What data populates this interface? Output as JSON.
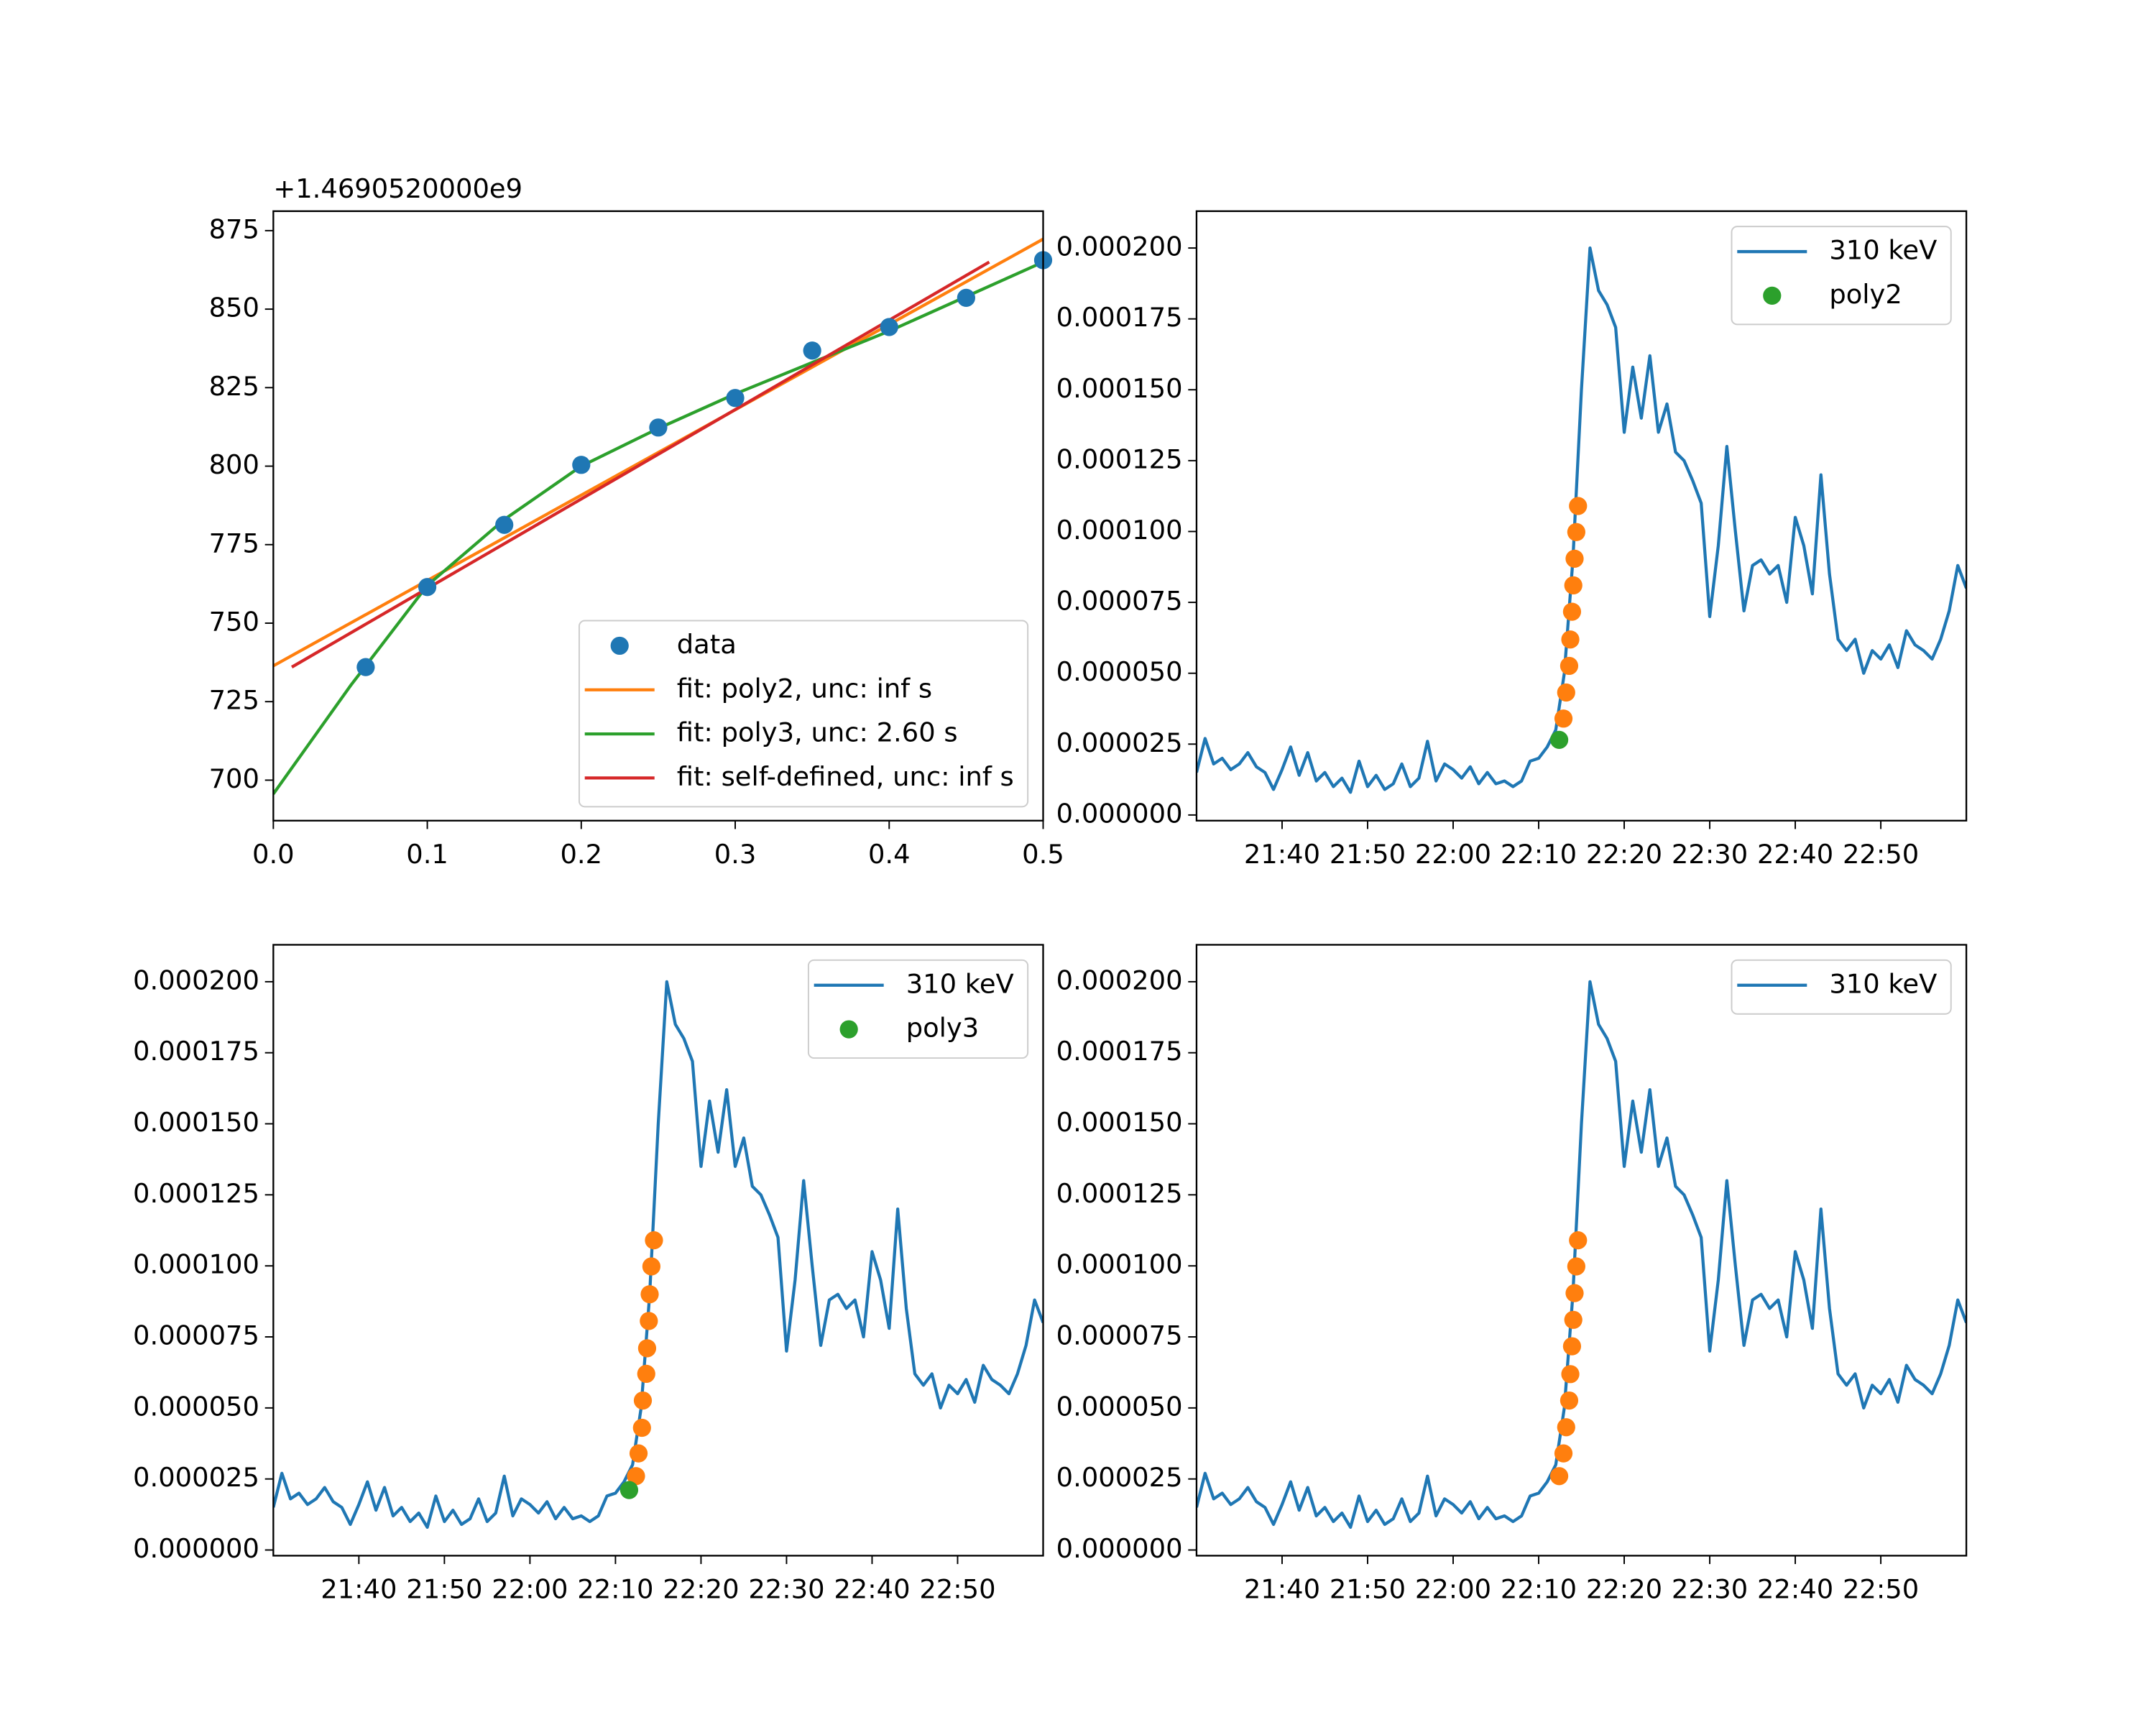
{
  "chart_data": [
    {
      "type": "line",
      "offset_label": "+1.4690520000e9",
      "legend": "lower right",
      "xlim": [
        0,
        0.5
      ],
      "xticks": [
        {
          "value": 0,
          "label": "0.0"
        },
        0.1,
        0.2,
        0.3,
        0.4,
        0.5
      ],
      "ylim": [
        687.1,
        881.2
      ],
      "yticks": [
        700,
        725,
        750,
        775,
        800,
        825,
        850,
        875
      ],
      "series": [
        {
          "name": "data",
          "type": "scatter",
          "color": "#1f77b4",
          "x": [
            0.06,
            0.1,
            0.15,
            0.2,
            0.25,
            0.3,
            0.35,
            0.4,
            0.45,
            0.5
          ],
          "values": [
            736,
            761.5,
            781.3,
            800.4,
            812.3,
            821.7,
            836.8,
            844.3,
            853.6,
            865.6
          ]
        },
        {
          "name": "fit: poly2, unc: inf s",
          "type": "line",
          "color": "#ff7f0e",
          "x": [
            0,
            0.5
          ],
          "values": [
            736.4,
            872.3
          ]
        },
        {
          "name": "fit: poly3, unc: 2.60 s",
          "type": "line",
          "color": "#2ca02c",
          "x": [
            0,
            0.05,
            0.1,
            0.15,
            0.2,
            0.25,
            0.3,
            0.35,
            0.4,
            0.45,
            0.5
          ],
          "values": [
            695.6,
            730,
            762,
            783,
            800,
            812,
            823,
            833,
            843,
            854,
            865
          ]
        },
        {
          "name": "fit: self-defined, unc: inf s",
          "type": "line",
          "color": "#d62728",
          "x": [
            0.012,
            0.465
          ],
          "values": [
            736,
            865
          ]
        }
      ]
    },
    {
      "type": "line",
      "legend": "upper right",
      "xlim": [
        "21:30",
        "23:00"
      ],
      "xticks": [
        "21:40",
        "21:50",
        "22:00",
        "22:10",
        "22:20",
        "22:30",
        "22:40",
        "22:50"
      ],
      "ylim": [
        -2e-06,
        0.000213
      ],
      "yticks": [
        {
          "value": 0,
          "label": "0.000000"
        },
        {
          "value": 2.5e-05,
          "label": "0.000025"
        },
        {
          "value": 5e-05,
          "label": "0.000050"
        },
        {
          "value": 7.5e-05,
          "label": "0.000075"
        },
        {
          "value": 0.0001,
          "label": "0.000100"
        },
        {
          "value": 0.000125,
          "label": "0.000125"
        },
        {
          "value": 0.00015,
          "label": "0.000150"
        },
        {
          "value": 0.000175,
          "label": "0.000175"
        },
        {
          "value": 0.0002,
          "label": "0.000200"
        }
      ],
      "series": [
        {
          "name": "310 keV",
          "type": "line",
          "color": "#1f77b4",
          "x": [
            "21:30",
            "21:31",
            "21:32",
            "21:33",
            "21:34",
            "21:35",
            "21:36",
            "21:37",
            "21:38",
            "21:39",
            "21:40",
            "21:41",
            "21:42",
            "21:43",
            "21:44",
            "21:45",
            "21:46",
            "21:47",
            "21:48",
            "21:49",
            "21:50",
            "21:51",
            "21:52",
            "21:53",
            "21:54",
            "21:55",
            "21:56",
            "21:57",
            "21:58",
            "21:59",
            "22:00",
            "22:01",
            "22:02",
            "22:03",
            "22:04",
            "22:05",
            "22:06",
            "22:07",
            "22:08",
            "22:09",
            "22:10",
            "22:11",
            "22:12",
            "22:13",
            "22:14",
            "22:15",
            "22:16",
            "22:17",
            "22:18",
            "22:19",
            "22:20",
            "22:21",
            "22:22",
            "22:23",
            "22:24",
            "22:25",
            "22:26",
            "22:27",
            "22:28",
            "22:29",
            "22:30",
            "22:31",
            "22:32",
            "22:33",
            "22:34",
            "22:35",
            "22:36",
            "22:37",
            "22:38",
            "22:39",
            "22:40",
            "22:41",
            "22:42",
            "22:43",
            "22:44",
            "22:45",
            "22:46",
            "22:47",
            "22:48",
            "22:49",
            "22:50",
            "22:51",
            "22:52",
            "22:53",
            "22:54",
            "22:55",
            "22:56",
            "22:57",
            "22:58",
            "22:59",
            "23:00"
          ],
          "values": [
            1.5e-05,
            2.7e-05,
            1.8e-05,
            2e-05,
            1.6e-05,
            1.8e-05,
            2.2e-05,
            1.7e-05,
            1.5e-05,
            9e-06,
            1.6e-05,
            2.4e-05,
            1.4e-05,
            2.2e-05,
            1.2e-05,
            1.5e-05,
            1e-05,
            1.3e-05,
            8e-06,
            1.9e-05,
            1e-05,
            1.4e-05,
            9e-06,
            1.1e-05,
            1.8e-05,
            1e-05,
            1.3e-05,
            2.6e-05,
            1.2e-05,
            1.8e-05,
            1.6e-05,
            1.3e-05,
            1.7e-05,
            1.1e-05,
            1.5e-05,
            1.1e-05,
            1.2e-05,
            1e-05,
            1.2e-05,
            1.9e-05,
            2e-05,
            2.4e-05,
            3e-05,
            5e-05,
            9e-05,
            0.00015,
            0.0002,
            0.000185,
            0.00018,
            0.000172,
            0.000135,
            0.000158,
            0.00014,
            0.000162,
            0.000135,
            0.000145,
            0.000128,
            0.000125,
            0.000118,
            0.00011,
            7e-05,
            9.5e-05,
            0.00013,
            0.0001,
            7.2e-05,
            8.8e-05,
            9e-05,
            8.5e-05,
            8.8e-05,
            7.5e-05,
            0.000105,
            9.5e-05,
            7.8e-05,
            0.00012,
            8.5e-05,
            6.2e-05,
            5.8e-05,
            6.2e-05,
            5e-05,
            5.8e-05,
            5.5e-05,
            6e-05,
            5.2e-05,
            6.5e-05,
            6e-05,
            5.8e-05,
            5.5e-05,
            6.2e-05,
            7.2e-05,
            8.8e-05,
            8e-05
          ]
        },
        {
          "type": "scatter",
          "color": "#ff7f0e",
          "x": [
            "22:12:54",
            "22:13:13",
            "22:13:34",
            "22:13:42",
            "22:13:54",
            "22:14:03",
            "22:14:12",
            "22:14:24",
            "22:14:36"
          ],
          "values": [
            3.4e-05,
            4.32e-05,
            5.26e-05,
            6.19e-05,
            7.17e-05,
            8.1e-05,
            9.04e-05,
            9.98e-05,
            0.000109
          ]
        },
        {
          "name": "poly2",
          "type": "scatter",
          "color": "#2ca02c",
          "x": [
            "22:12:24"
          ],
          "values": [
            2.65e-05
          ]
        }
      ]
    },
    {
      "type": "line",
      "legend": "upper right",
      "xlim": [
        "21:30",
        "23:00"
      ],
      "xticks": [
        "21:40",
        "21:50",
        "22:00",
        "22:10",
        "22:20",
        "22:30",
        "22:40",
        "22:50"
      ],
      "ylim": [
        -2e-06,
        0.000213
      ],
      "yticks": [
        {
          "value": 0,
          "label": "0.000000"
        },
        {
          "value": 2.5e-05,
          "label": "0.000025"
        },
        {
          "value": 5e-05,
          "label": "0.000050"
        },
        {
          "value": 7.5e-05,
          "label": "0.000075"
        },
        {
          "value": 0.0001,
          "label": "0.000100"
        },
        {
          "value": 0.000125,
          "label": "0.000125"
        },
        {
          "value": 0.00015,
          "label": "0.000150"
        },
        {
          "value": 0.000175,
          "label": "0.000175"
        },
        {
          "value": 0.0002,
          "label": "0.000200"
        }
      ],
      "series": [
        {
          "name": "310 keV",
          "type": "line",
          "color": "#1f77b4",
          "x": [
            "21:30",
            "21:31",
            "21:32",
            "21:33",
            "21:34",
            "21:35",
            "21:36",
            "21:37",
            "21:38",
            "21:39",
            "21:40",
            "21:41",
            "21:42",
            "21:43",
            "21:44",
            "21:45",
            "21:46",
            "21:47",
            "21:48",
            "21:49",
            "21:50",
            "21:51",
            "21:52",
            "21:53",
            "21:54",
            "21:55",
            "21:56",
            "21:57",
            "21:58",
            "21:59",
            "22:00",
            "22:01",
            "22:02",
            "22:03",
            "22:04",
            "22:05",
            "22:06",
            "22:07",
            "22:08",
            "22:09",
            "22:10",
            "22:11",
            "22:12",
            "22:13",
            "22:14",
            "22:15",
            "22:16",
            "22:17",
            "22:18",
            "22:19",
            "22:20",
            "22:21",
            "22:22",
            "22:23",
            "22:24",
            "22:25",
            "22:26",
            "22:27",
            "22:28",
            "22:29",
            "22:30",
            "22:31",
            "22:32",
            "22:33",
            "22:34",
            "22:35",
            "22:36",
            "22:37",
            "22:38",
            "22:39",
            "22:40",
            "22:41",
            "22:42",
            "22:43",
            "22:44",
            "22:45",
            "22:46",
            "22:47",
            "22:48",
            "22:49",
            "22:50",
            "22:51",
            "22:52",
            "22:53",
            "22:54",
            "22:55",
            "22:56",
            "22:57",
            "22:58",
            "22:59",
            "23:00"
          ],
          "values": [
            1.5e-05,
            2.7e-05,
            1.8e-05,
            2e-05,
            1.6e-05,
            1.8e-05,
            2.2e-05,
            1.7e-05,
            1.5e-05,
            9e-06,
            1.6e-05,
            2.4e-05,
            1.4e-05,
            2.2e-05,
            1.2e-05,
            1.5e-05,
            1e-05,
            1.3e-05,
            8e-06,
            1.9e-05,
            1e-05,
            1.4e-05,
            9e-06,
            1.1e-05,
            1.8e-05,
            1e-05,
            1.3e-05,
            2.6e-05,
            1.2e-05,
            1.8e-05,
            1.6e-05,
            1.3e-05,
            1.7e-05,
            1.1e-05,
            1.5e-05,
            1.1e-05,
            1.2e-05,
            1e-05,
            1.2e-05,
            1.9e-05,
            2e-05,
            2.4e-05,
            3e-05,
            5e-05,
            9e-05,
            0.00015,
            0.0002,
            0.000185,
            0.00018,
            0.000172,
            0.000135,
            0.000158,
            0.00014,
            0.000162,
            0.000135,
            0.000145,
            0.000128,
            0.000125,
            0.000118,
            0.00011,
            7e-05,
            9.5e-05,
            0.00013,
            0.0001,
            7.2e-05,
            8.8e-05,
            9e-05,
            8.5e-05,
            8.8e-05,
            7.5e-05,
            0.000105,
            9.5e-05,
            7.8e-05,
            0.00012,
            8.5e-05,
            6.2e-05,
            5.8e-05,
            6.2e-05,
            5e-05,
            5.8e-05,
            5.5e-05,
            6e-05,
            5.2e-05,
            6.5e-05,
            6e-05,
            5.8e-05,
            5.5e-05,
            6.2e-05,
            7.2e-05,
            8.8e-05,
            8e-05
          ]
        },
        {
          "type": "scatter",
          "color": "#ff7f0e",
          "x": [
            "22:12:24",
            "22:12:42",
            "22:13:06",
            "22:13:12",
            "22:13:36",
            "22:13:42",
            "22:13:54",
            "22:14:00",
            "22:14:12",
            "22:14:30"
          ],
          "values": [
            2.6e-05,
            3.4e-05,
            4.3e-05,
            5.26e-05,
            6.2e-05,
            7.1e-05,
            8.06e-05,
            9e-05,
            9.98e-05,
            0.000109
          ]
        },
        {
          "name": "poly3",
          "type": "scatter",
          "color": "#2ca02c",
          "x": [
            "22:11:36"
          ],
          "values": [
            2.11e-05
          ]
        }
      ]
    },
    {
      "type": "line",
      "legend": "upper right",
      "xlim": [
        "21:30",
        "23:00"
      ],
      "xticks": [
        "21:40",
        "21:50",
        "22:00",
        "22:10",
        "22:20",
        "22:30",
        "22:40",
        "22:50"
      ],
      "ylim": [
        -2e-06,
        0.000213
      ],
      "yticks": [
        {
          "value": 0,
          "label": "0.000000"
        },
        {
          "value": 2.5e-05,
          "label": "0.000025"
        },
        {
          "value": 5e-05,
          "label": "0.000050"
        },
        {
          "value": 7.5e-05,
          "label": "0.000075"
        },
        {
          "value": 0.0001,
          "label": "0.000100"
        },
        {
          "value": 0.000125,
          "label": "0.000125"
        },
        {
          "value": 0.00015,
          "label": "0.000150"
        },
        {
          "value": 0.000175,
          "label": "0.000175"
        },
        {
          "value": 0.0002,
          "label": "0.000200"
        }
      ],
      "series": [
        {
          "name": "310 keV",
          "type": "line",
          "color": "#1f77b4",
          "x": [
            "21:30",
            "21:31",
            "21:32",
            "21:33",
            "21:34",
            "21:35",
            "21:36",
            "21:37",
            "21:38",
            "21:39",
            "21:40",
            "21:41",
            "21:42",
            "21:43",
            "21:44",
            "21:45",
            "21:46",
            "21:47",
            "21:48",
            "21:49",
            "21:50",
            "21:51",
            "21:52",
            "21:53",
            "21:54",
            "21:55",
            "21:56",
            "21:57",
            "21:58",
            "21:59",
            "22:00",
            "22:01",
            "22:02",
            "22:03",
            "22:04",
            "22:05",
            "22:06",
            "22:07",
            "22:08",
            "22:09",
            "22:10",
            "22:11",
            "22:12",
            "22:13",
            "22:14",
            "22:15",
            "22:16",
            "22:17",
            "22:18",
            "22:19",
            "22:20",
            "22:21",
            "22:22",
            "22:23",
            "22:24",
            "22:25",
            "22:26",
            "22:27",
            "22:28",
            "22:29",
            "22:30",
            "22:31",
            "22:32",
            "22:33",
            "22:34",
            "22:35",
            "22:36",
            "22:37",
            "22:38",
            "22:39",
            "22:40",
            "22:41",
            "22:42",
            "22:43",
            "22:44",
            "22:45",
            "22:46",
            "22:47",
            "22:48",
            "22:49",
            "22:50",
            "22:51",
            "22:52",
            "22:53",
            "22:54",
            "22:55",
            "22:56",
            "22:57",
            "22:58",
            "22:59",
            "23:00"
          ],
          "values": [
            1.5e-05,
            2.7e-05,
            1.8e-05,
            2e-05,
            1.6e-05,
            1.8e-05,
            2.2e-05,
            1.7e-05,
            1.5e-05,
            9e-06,
            1.6e-05,
            2.4e-05,
            1.4e-05,
            2.2e-05,
            1.2e-05,
            1.5e-05,
            1e-05,
            1.3e-05,
            8e-06,
            1.9e-05,
            1e-05,
            1.4e-05,
            9e-06,
            1.1e-05,
            1.8e-05,
            1e-05,
            1.3e-05,
            2.6e-05,
            1.2e-05,
            1.8e-05,
            1.6e-05,
            1.3e-05,
            1.7e-05,
            1.1e-05,
            1.5e-05,
            1.1e-05,
            1.2e-05,
            1e-05,
            1.2e-05,
            1.9e-05,
            2e-05,
            2.4e-05,
            3e-05,
            5e-05,
            9e-05,
            0.00015,
            0.0002,
            0.000185,
            0.00018,
            0.000172,
            0.000135,
            0.000158,
            0.00014,
            0.000162,
            0.000135,
            0.000145,
            0.000128,
            0.000125,
            0.000118,
            0.00011,
            7e-05,
            9.5e-05,
            0.00013,
            0.0001,
            7.2e-05,
            8.8e-05,
            9e-05,
            8.5e-05,
            8.8e-05,
            7.5e-05,
            0.000105,
            9.5e-05,
            7.8e-05,
            0.00012,
            8.5e-05,
            6.2e-05,
            5.8e-05,
            6.2e-05,
            5e-05,
            5.8e-05,
            5.5e-05,
            6e-05,
            5.2e-05,
            6.5e-05,
            6e-05,
            5.8e-05,
            5.5e-05,
            6.2e-05,
            7.2e-05,
            8.8e-05,
            8e-05
          ]
        },
        {
          "type": "scatter",
          "color": "#ff7f0e",
          "x": [
            "22:12:24",
            "22:12:54",
            "22:13:13",
            "22:13:34",
            "22:13:42",
            "22:13:54",
            "22:14:03",
            "22:14:12",
            "22:14:24",
            "22:14:36"
          ],
          "values": [
            2.6e-05,
            3.4e-05,
            4.32e-05,
            5.26e-05,
            6.19e-05,
            7.17e-05,
            8.1e-05,
            9.04e-05,
            9.98e-05,
            0.000109
          ]
        }
      ]
    }
  ]
}
